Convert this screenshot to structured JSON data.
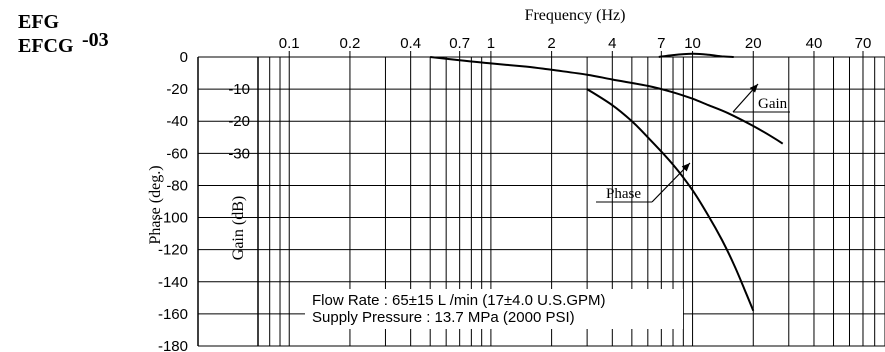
{
  "model": {
    "line1": "EFG",
    "line2": "EFCG",
    "suffix": "-03"
  },
  "chart_data": {
    "type": "line",
    "title": "",
    "x_axis": {
      "label": "Frequency (Hz)",
      "scale": "log",
      "range": [
        0.07,
        90
      ],
      "ticks": [
        0.1,
        0.2,
        0.4,
        0.7,
        1,
        2,
        4,
        7,
        10,
        20,
        40,
        70
      ],
      "tick_labels": [
        "0.1",
        "0.2",
        "0.4",
        "0.7",
        "1",
        "2",
        "4",
        "7",
        "10",
        "20",
        "40",
        "70"
      ]
    },
    "phase_axis": {
      "label": "Phase (deg.)",
      "range": [
        -180,
        0
      ],
      "ticks": [
        0,
        -20,
        -40,
        -60,
        -80,
        -100,
        -120,
        -140,
        -160,
        -180
      ],
      "tick_labels": [
        "0",
        "-20",
        "-40",
        "-60",
        "-80",
        "-100",
        "-120",
        "-140",
        "-160",
        "-180"
      ]
    },
    "gain_axis": {
      "label": "Gain (dB)",
      "unit_per_phase_deg": 0.5,
      "ticks": [
        -10,
        -20,
        -30
      ],
      "tick_labels": [
        "-10",
        "-20",
        "-30"
      ]
    },
    "grid": true,
    "series": [
      {
        "name": "Gain",
        "axis": "gain",
        "x": [
          0.5,
          0.7,
          1,
          1.5,
          2,
          3,
          4,
          6,
          8,
          10,
          12,
          15,
          20,
          25,
          28
        ],
        "y": [
          0,
          -1,
          -2,
          -3,
          -4,
          -5.5,
          -7,
          -9,
          -11,
          -13,
          -15,
          -17.5,
          -21.5,
          -25,
          -27
        ]
      },
      {
        "name": "Phase",
        "axis": "phase",
        "x": [
          3,
          4,
          5,
          6,
          8,
          10,
          12,
          14,
          16,
          18,
          20
        ],
        "y": [
          -20,
          -30,
          -40,
          -50,
          -67,
          -83,
          -99,
          -114,
          -129,
          -144,
          -158
        ]
      },
      {
        "name": "",
        "axis": "gain",
        "x": [
          6.8,
          8,
          10,
          12,
          14,
          16
        ],
        "y": [
          0,
          0.6,
          1,
          0.7,
          0.2,
          0
        ]
      }
    ],
    "annotations": {
      "gain_label": "Gain",
      "phase_label": "Phase",
      "conditions_line1": "Flow Rate : 65±15 L /min (17±4.0 U.S.GPM)",
      "conditions_line2": "Supply Pressure : 13.7 MPa (2000 PSI)"
    },
    "colors": {
      "curve": "#000000",
      "grid": "#000000",
      "background": "#ffffff"
    }
  }
}
